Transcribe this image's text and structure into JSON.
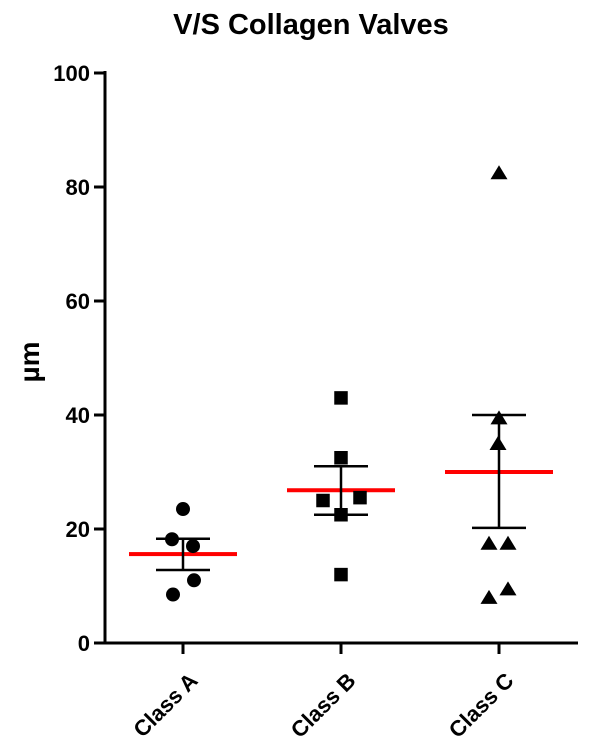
{
  "figure": {
    "background": "#ffffff"
  },
  "chart_data": {
    "type": "scatter",
    "title": "V/S Collagen Valves",
    "ylabel": "µm",
    "xlabel": "",
    "ylim": [
      0,
      100
    ],
    "yticks": [
      0,
      20,
      40,
      60,
      80,
      100
    ],
    "grid": false,
    "legend": false,
    "axis_color": "#000000",
    "marker_color": "#000000",
    "mean_line_color": "#ff0000",
    "error_bar_color": "#000000",
    "error_bar_type": "mean_sem",
    "categories": [
      "Class A",
      "Class B",
      "Class C"
    ],
    "point_format": "[x_offset_px, value_um]",
    "series": [
      {
        "name": "Class A",
        "marker": "circle",
        "points": [
          [
            0,
            23.5
          ],
          [
            -11,
            18.2
          ],
          [
            10,
            17
          ],
          [
            11,
            11
          ],
          [
            -10,
            8.5
          ]
        ],
        "mean": 15.6,
        "err_low": 12.8,
        "err_high": 18.3
      },
      {
        "name": "Class B",
        "marker": "square",
        "points": [
          [
            0,
            43
          ],
          [
            0,
            32.5
          ],
          [
            -18,
            25
          ],
          [
            19,
            25.5
          ],
          [
            0,
            22.5
          ],
          [
            0,
            12
          ]
        ],
        "mean": 26.8,
        "err_low": 22.5,
        "err_high": 31
      },
      {
        "name": "Class C",
        "marker": "triangle",
        "points": [
          [
            0,
            82.5
          ],
          [
            0,
            39.5
          ],
          [
            -1,
            35
          ],
          [
            -10,
            17.5
          ],
          [
            9,
            17.5
          ],
          [
            -10,
            8
          ],
          [
            9,
            9.5
          ]
        ],
        "mean": 30,
        "err_low": 20.2,
        "err_high": 40
      }
    ]
  }
}
